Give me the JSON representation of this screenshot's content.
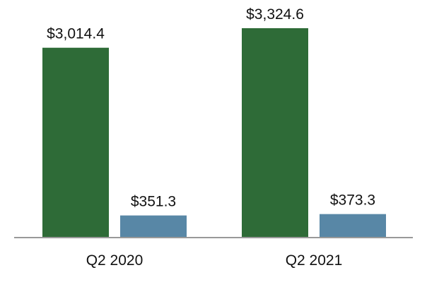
{
  "chart_data": {
    "type": "bar",
    "categories": [
      "Q2 2020",
      "Q2 2021"
    ],
    "series": [
      {
        "values": [
          3014.4,
          3324.6
        ],
        "labels": [
          "$3,014.4",
          "$3,324.6"
        ],
        "color": "#2e6b37"
      },
      {
        "values": [
          351.3,
          373.3
        ],
        "labels": [
          "$351.3",
          "$373.3"
        ],
        "color": "#5887a6"
      }
    ],
    "ylim": [
      0,
      3324.6
    ],
    "grid": false,
    "axis_color": "#999999"
  }
}
